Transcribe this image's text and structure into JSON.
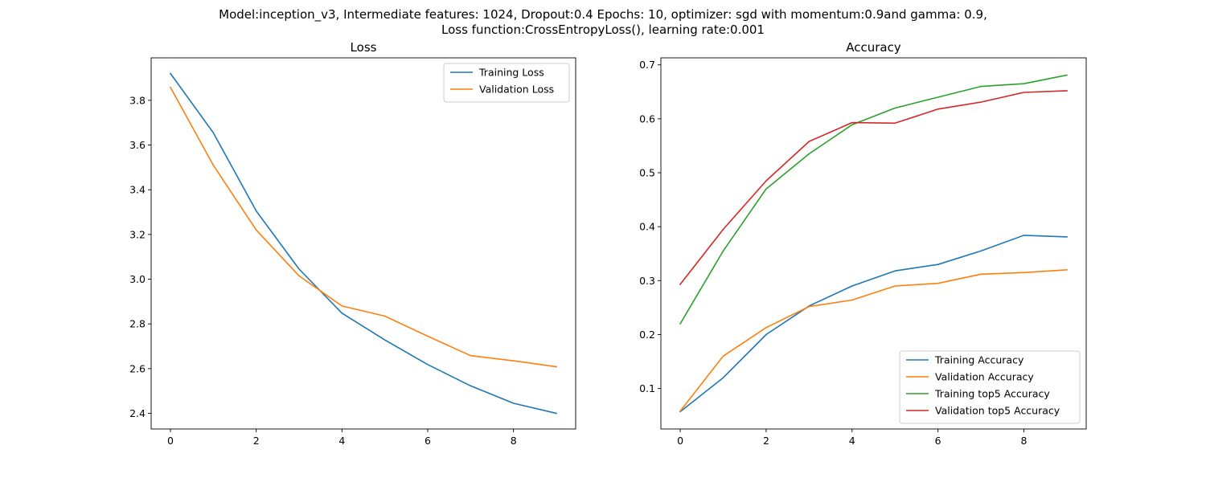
{
  "figure": {
    "suptitle_line1": "Model:inception_v3, Intermediate features: 1024, Dropout:0.4 Epochs: 10, optimizer: sgd with momentum:0.9and gamma: 0.9,",
    "suptitle_line2": "Loss function:CrossEntropyLoss(), learning rate:0.001"
  },
  "chart_data": [
    {
      "type": "line",
      "title": "Loss",
      "xlabel": "",
      "ylabel": "",
      "x": [
        0,
        1,
        2,
        3,
        4,
        5,
        6,
        7,
        8,
        9
      ],
      "xlim": [
        -0.45,
        9.45
      ],
      "ylim": [
        2.33,
        3.99
      ],
      "xticks": [
        0,
        2,
        4,
        6,
        8
      ],
      "yticks": [
        2.4,
        2.6,
        2.8,
        3.0,
        3.2,
        3.4,
        3.6,
        3.8
      ],
      "grid": false,
      "legend": "upper right",
      "series": [
        {
          "name": "Training Loss",
          "color": "#1f77b4",
          "values": [
            3.92,
            3.655,
            3.305,
            3.045,
            2.848,
            2.728,
            2.618,
            2.523,
            2.445,
            2.4
          ]
        },
        {
          "name": "Validation Loss",
          "color": "#ff7f0e",
          "values": [
            3.858,
            3.51,
            3.22,
            3.015,
            2.88,
            2.835,
            2.745,
            2.658,
            2.635,
            2.608
          ]
        }
      ]
    },
    {
      "type": "line",
      "title": "Accuracy",
      "xlabel": "",
      "ylabel": "",
      "x": [
        0,
        1,
        2,
        3,
        4,
        5,
        6,
        7,
        8,
        9
      ],
      "xlim": [
        -0.45,
        9.45
      ],
      "ylim": [
        0.025,
        0.713
      ],
      "xticks": [
        0,
        2,
        4,
        6,
        8
      ],
      "yticks": [
        0.1,
        0.2,
        0.3,
        0.4,
        0.5,
        0.6,
        0.7
      ],
      "grid": false,
      "legend": "lower right",
      "series": [
        {
          "name": "Training Accuracy",
          "color": "#1f77b4",
          "values": [
            0.057,
            0.12,
            0.2,
            0.253,
            0.29,
            0.318,
            0.33,
            0.355,
            0.384,
            0.381
          ]
        },
        {
          "name": "Validation Accuracy",
          "color": "#ff7f0e",
          "values": [
            0.058,
            0.16,
            0.213,
            0.252,
            0.264,
            0.29,
            0.295,
            0.312,
            0.315,
            0.32
          ]
        },
        {
          "name": "Training top5 Accuracy",
          "color": "#2ca02c",
          "values": [
            0.22,
            0.355,
            0.47,
            0.535,
            0.589,
            0.62,
            0.64,
            0.66,
            0.665,
            0.681
          ]
        },
        {
          "name": "Validation top5 Accuracy",
          "color": "#d62728",
          "values": [
            0.293,
            0.395,
            0.485,
            0.558,
            0.593,
            0.592,
            0.618,
            0.631,
            0.649,
            0.652
          ]
        }
      ]
    }
  ]
}
